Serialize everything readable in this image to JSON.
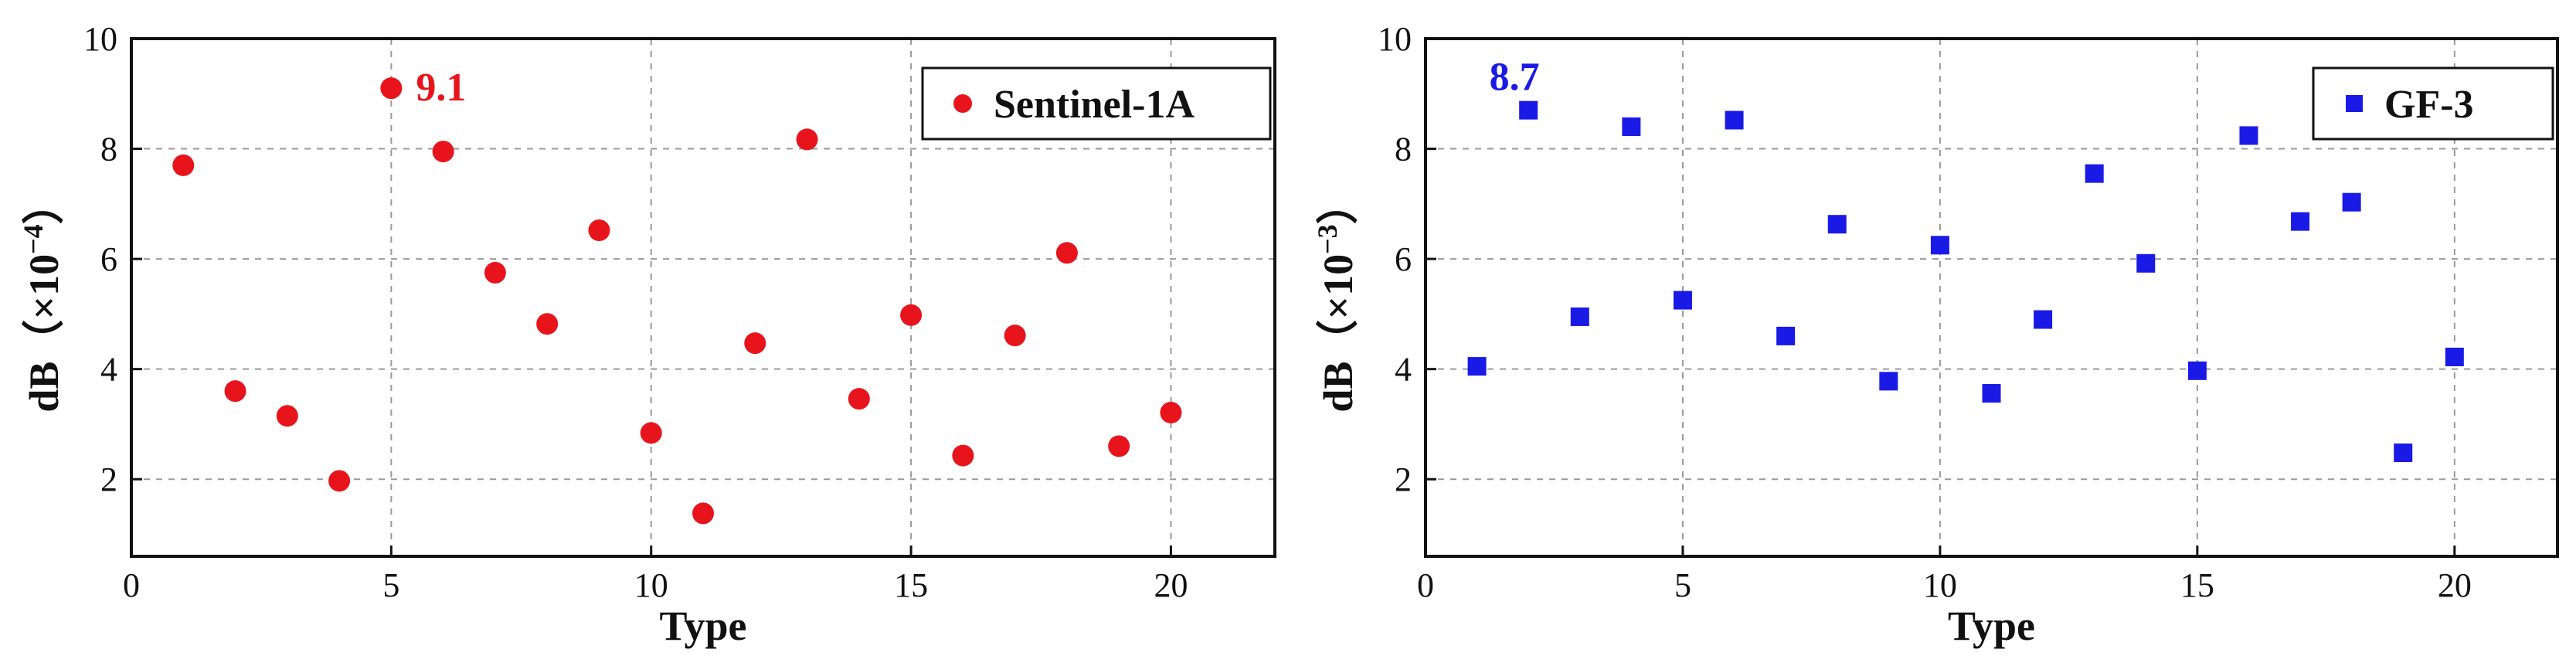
{
  "chart_data": [
    {
      "type": "scatter",
      "xlabel": "Type",
      "ylabel": "dB（×10⁻⁴）",
      "ylabel_prefix": "dB（×10",
      "ylabel_exp": "−4",
      "ylabel_suffix": "）",
      "xlim": [
        0,
        22
      ],
      "ylim": [
        0.6,
        10
      ],
      "xticks": [
        0,
        5,
        10,
        15,
        20
      ],
      "yticks": [
        2,
        4,
        6,
        8,
        10
      ],
      "grid": true,
      "legend_position": "top-right",
      "marker": "circle",
      "color": "#e8141c",
      "series": [
        {
          "name": "Sentinel-1A",
          "x": [
            1,
            2,
            3,
            4,
            5,
            6,
            7,
            8,
            9,
            10,
            11,
            12,
            13,
            14,
            15,
            16,
            17,
            18,
            19,
            20
          ],
          "y": [
            7.7,
            3.6,
            3.15,
            1.97,
            9.1,
            7.95,
            5.75,
            4.82,
            6.52,
            2.84,
            1.38,
            4.47,
            8.17,
            3.46,
            4.98,
            2.43,
            4.61,
            6.11,
            2.6,
            3.21
          ]
        }
      ],
      "annotations": [
        {
          "text": "9.1",
          "x": 5,
          "y": 9.1
        }
      ]
    },
    {
      "type": "scatter",
      "xlabel": "Type",
      "ylabel": "dB（×10⁻³）",
      "ylabel_prefix": "dB（×10",
      "ylabel_exp": "−3",
      "ylabel_suffix": "）",
      "xlim": [
        0,
        22
      ],
      "ylim": [
        0.6,
        10
      ],
      "xticks": [
        0,
        5,
        10,
        15,
        20
      ],
      "yticks": [
        2,
        4,
        6,
        8,
        10
      ],
      "grid": true,
      "legend_position": "top-right",
      "marker": "square",
      "color": "#1a1ae6",
      "series": [
        {
          "name": "GF-3",
          "x": [
            1,
            2,
            3,
            4,
            5,
            6,
            7,
            8,
            9,
            10,
            11,
            12,
            13,
            14,
            15,
            16,
            17,
            18,
            19,
            20
          ],
          "y": [
            4.05,
            8.7,
            4.95,
            8.4,
            5.25,
            8.52,
            4.6,
            6.63,
            3.78,
            6.25,
            3.56,
            4.9,
            7.55,
            5.92,
            3.97,
            8.24,
            6.68,
            7.03,
            2.48,
            4.22
          ]
        }
      ],
      "annotations": [
        {
          "text": "8.7",
          "x": 2,
          "y": 8.7
        }
      ]
    }
  ]
}
